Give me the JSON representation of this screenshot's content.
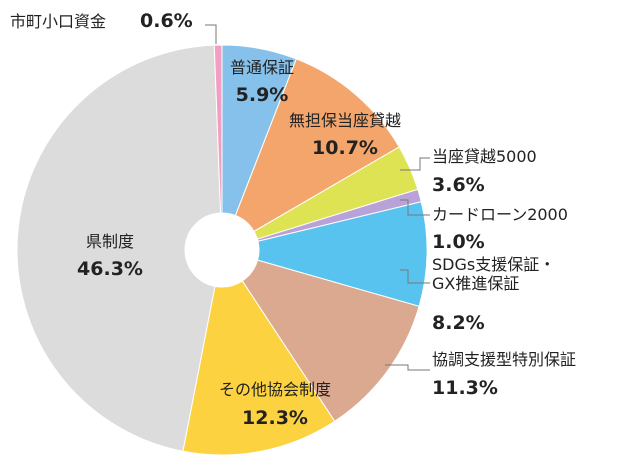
{
  "chart_data": {
    "type": "donut",
    "categories": [
      "普通保証",
      "無担保当座貸越",
      "当座貸越5000",
      "カードローン2000",
      "SDGs支援保証・\nGX推進保証",
      "協調支援型特別保証",
      "その他協会制度",
      "県制度",
      "市町小口資金"
    ],
    "values": [
      5.9,
      10.7,
      3.6,
      1.0,
      8.2,
      11.3,
      12.3,
      46.3,
      0.6
    ],
    "value_labels": [
      "5.9%",
      "10.7%",
      "3.6%",
      "1.0%",
      "8.2%",
      "11.3%",
      "12.3%",
      "46.3%",
      "0.6%"
    ],
    "colors": [
      "#85c1ea",
      "#f3a56b",
      "#dde352",
      "#b9a2d8",
      "#58c3ef",
      "#dba98f",
      "#fcd241",
      "#dcdcdc",
      "#f19ec2"
    ]
  }
}
